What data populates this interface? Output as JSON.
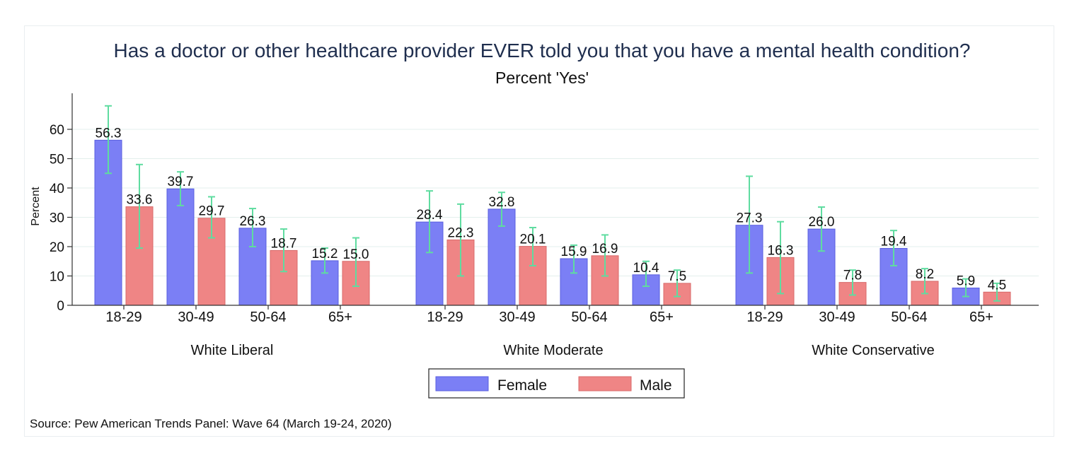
{
  "title": "Has a doctor or other healthcare provider EVER told you that you have a mental health condition?",
  "subtitle": "Percent 'Yes'",
  "source": "Source: Pew American Trends Panel: Wave 64 (March 19-24, 2020)",
  "colors": {
    "female": "#7b7ff5",
    "male": "#ef8585",
    "error_bar": "#5fdca0",
    "grid": "#e3efec",
    "axis": "#333333"
  },
  "chart_data": {
    "type": "bar",
    "title": "Has a doctor or other healthcare provider EVER told you that you have a mental health condition?",
    "subtitle": "Percent 'Yes'",
    "ylabel": "Percent",
    "xlabel": "",
    "ylim": [
      0,
      70
    ],
    "yticks": [
      0,
      10,
      20,
      30,
      40,
      50,
      60
    ],
    "grid": true,
    "legend_position": "bottom-center",
    "series_names": [
      "Female",
      "Male"
    ],
    "groups": [
      {
        "name": "White Liberal",
        "categories": [
          "18-29",
          "30-49",
          "50-64",
          "65+"
        ],
        "series": [
          {
            "name": "Female",
            "values": [
              56.3,
              39.7,
              26.3,
              15.2
            ],
            "labels": [
              "56.3",
              "39.7",
              "26.3",
              "15.2"
            ],
            "ci_low": [
              45,
              34,
              20,
              11
            ],
            "ci_high": [
              68,
              45.5,
              33,
              19.5
            ]
          },
          {
            "name": "Male",
            "values": [
              33.6,
              29.7,
              18.7,
              15.0
            ],
            "labels": [
              "33.6",
              "29.7",
              "18.7",
              "15.0"
            ],
            "ci_low": [
              19.5,
              23,
              11.5,
              6.5
            ],
            "ci_high": [
              48,
              37,
              26,
              23
            ]
          }
        ]
      },
      {
        "name": "White Moderate",
        "categories": [
          "18-29",
          "30-49",
          "50-64",
          "65+"
        ],
        "series": [
          {
            "name": "Female",
            "values": [
              28.4,
              32.8,
              15.9,
              10.4
            ],
            "labels": [
              "28.4",
              "32.8",
              "15.9",
              "10.4"
            ],
            "ci_low": [
              18,
              27,
              11,
              6.5
            ],
            "ci_high": [
              39,
              38.5,
              20.5,
              15
            ]
          },
          {
            "name": "Male",
            "values": [
              22.3,
              20.1,
              16.9,
              7.5
            ],
            "labels": [
              "22.3",
              "20.1",
              "16.9",
              "7.5"
            ],
            "ci_low": [
              10,
              13.5,
              10,
              3
            ],
            "ci_high": [
              34.5,
              26.5,
              24,
              12
            ]
          }
        ]
      },
      {
        "name": "White Conservative",
        "categories": [
          "18-29",
          "30-49",
          "50-64",
          "65+"
        ],
        "series": [
          {
            "name": "Female",
            "values": [
              27.3,
              26.0,
              19.4,
              5.9
            ],
            "labels": [
              "27.3",
              "26.0",
              "19.4",
              "5.9"
            ],
            "ci_low": [
              11,
              18.5,
              13.5,
              3
            ],
            "ci_high": [
              44,
              33.5,
              25.5,
              9
            ]
          },
          {
            "name": "Male",
            "values": [
              16.3,
              7.8,
              8.2,
              4.5
            ],
            "labels": [
              "16.3",
              "7.8",
              "8.2",
              "4.5"
            ],
            "ci_low": [
              4,
              3.5,
              4,
              1.5
            ],
            "ci_high": [
              28.5,
              12,
              12.5,
              7.5
            ]
          }
        ]
      }
    ]
  }
}
